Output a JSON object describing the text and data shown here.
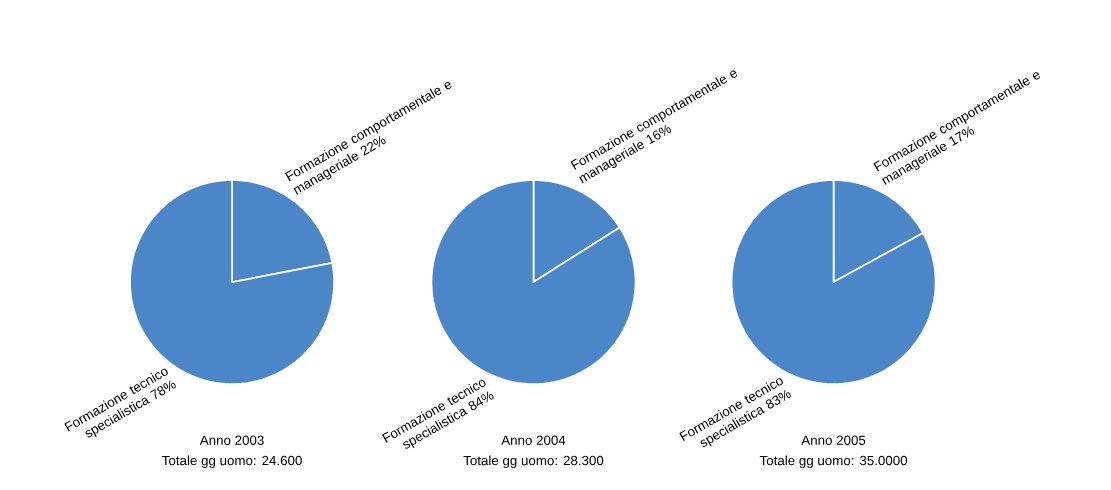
{
  "chart_data": [
    {
      "type": "pie",
      "title": "Anno 2003",
      "subtitle": "Totale gg uomo: 24.600",
      "categories": [
        "Formazione comportamentale e manageriale",
        "Formazione tecnico specialistica"
      ],
      "values": [
        22,
        78
      ],
      "value_labels": [
        "22%",
        "78%"
      ],
      "colors": [
        "#4a86c8",
        "#4a86c8"
      ]
    },
    {
      "type": "pie",
      "title": "Anno 2004",
      "subtitle": "Totale gg uomo: 28.300",
      "categories": [
        "Formazione comportamentale e manageriale",
        "Formazione tecnico specialistica"
      ],
      "values": [
        16,
        84
      ],
      "value_labels": [
        "16%",
        "84%"
      ],
      "colors": [
        "#4a86c8",
        "#4a86c8"
      ]
    },
    {
      "type": "pie",
      "title": "Anno 2005",
      "subtitle": "Totale gg uomo: 35.0000",
      "categories": [
        "Formazione comportamentale e manageriale",
        "Formazione tecnico specialistica"
      ],
      "values": [
        17,
        83
      ],
      "value_labels": [
        "17%",
        "83%"
      ],
      "colors": [
        "#4a86c8",
        "#4a86c8"
      ]
    }
  ]
}
